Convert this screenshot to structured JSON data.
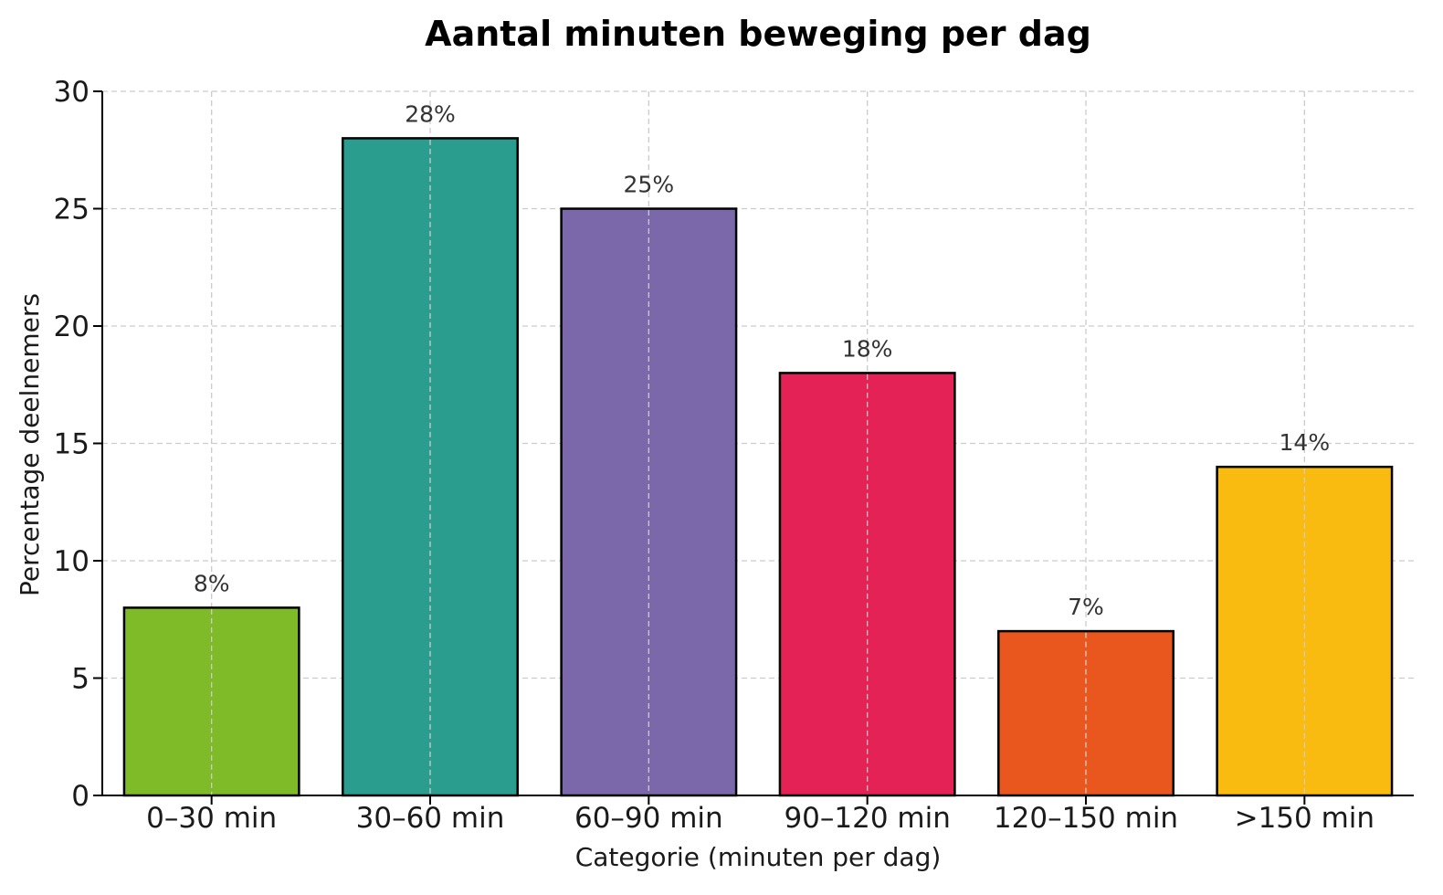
{
  "chart_data": {
    "type": "bar",
    "title": "Aantal minuten beweging per dag",
    "xlabel": "Categorie (minuten per dag)",
    "ylabel": "Percentage deelnemers",
    "categories": [
      "0–30 min",
      "30–60 min",
      "60–90 min",
      "90–120 min",
      "120–150 min",
      ">150 min"
    ],
    "values": [
      8,
      28,
      25,
      18,
      7,
      14
    ],
    "data_labels": [
      "8%",
      "28%",
      "25%",
      "18%",
      "7%",
      "14%"
    ],
    "colors": [
      "#7fba28",
      "#2a9d8f",
      "#7b68aa",
      "#e52256",
      "#e9571e",
      "#f9bb10"
    ],
    "ylim": [
      0,
      30
    ],
    "yticks": [
      0,
      5,
      10,
      15,
      20,
      25,
      30
    ],
    "grid": true,
    "legend": "none"
  }
}
